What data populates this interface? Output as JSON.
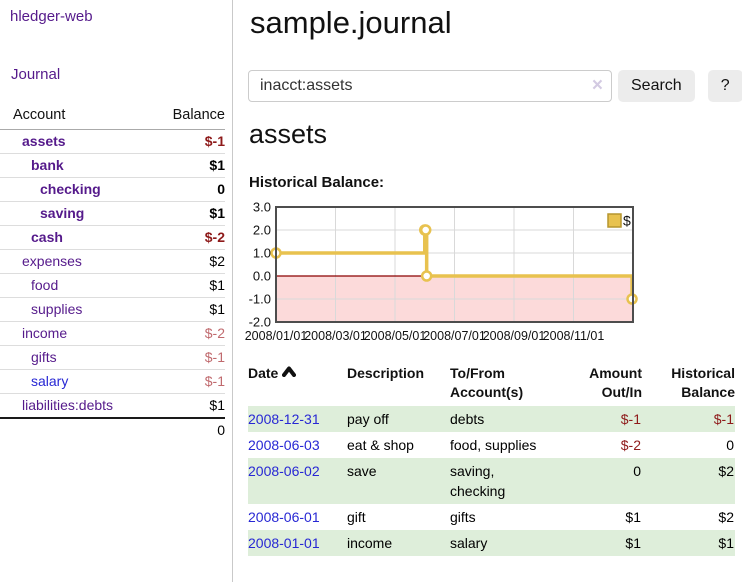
{
  "app": {
    "title": "hledger-web",
    "nav_journal": "Journal"
  },
  "sidebar": {
    "headers": {
      "account": "Account",
      "balance": "Balance"
    },
    "accounts": [
      {
        "name": "assets",
        "level": 0,
        "emph": true,
        "balance": "$-1",
        "neg": "strong"
      },
      {
        "name": "bank",
        "level": 1,
        "emph": true,
        "balance": "$1"
      },
      {
        "name": "checking",
        "level": 2,
        "emph": true,
        "balance": "0"
      },
      {
        "name": "saving",
        "level": 2,
        "emph": true,
        "balance": "$1"
      },
      {
        "name": "cash",
        "level": 1,
        "emph": true,
        "balance": "$-2",
        "neg": "strong"
      },
      {
        "name": "expenses",
        "level": 0,
        "emph": false,
        "balance": "$2"
      },
      {
        "name": "food",
        "level": 1,
        "emph": false,
        "balance": "$1"
      },
      {
        "name": "supplies",
        "level": 1,
        "emph": false,
        "balance": "$1"
      },
      {
        "name": "income",
        "level": 0,
        "emph": false,
        "balance": "$-2",
        "neg": "muted"
      },
      {
        "name": "gifts",
        "level": 1,
        "emph": false,
        "balance": "$-1",
        "neg": "muted"
      },
      {
        "name": "salary",
        "level": 1,
        "emph": false,
        "balance": "$-1",
        "neg": "muted",
        "unvisited": true
      },
      {
        "name": "liabilities:debts",
        "level": 0,
        "emph": false,
        "balance": "$1",
        "last": true
      }
    ],
    "total": "0"
  },
  "main": {
    "title": "sample.journal",
    "search": {
      "value": "inacct:assets",
      "clear_icon": "×",
      "button": "Search",
      "help": "?"
    },
    "account_heading": "assets"
  },
  "chart_data": {
    "type": "line",
    "title": "Historical Balance:",
    "step": true,
    "x_domain": [
      "2008-01-01",
      "2008-12-31"
    ],
    "x_ticks": [
      "2008/01/01",
      "2008/03/01",
      "2008/05/01",
      "2008/07/01",
      "2008/09/01",
      "2008/11/01"
    ],
    "y_ticks": [
      "3.0",
      "2.0",
      "1.0",
      "0.0",
      "-1.0",
      "-2.0"
    ],
    "ylim": [
      -2.0,
      3.0
    ],
    "grid": true,
    "legend": {
      "label": "$",
      "position": "top-right"
    },
    "series": [
      {
        "name": "$",
        "color": "#e8c24f",
        "points": [
          {
            "date": "2008-01-01",
            "value": 1
          },
          {
            "date": "2008-06-01",
            "value": 2
          },
          {
            "date": "2008-06-02",
            "value": 2
          },
          {
            "date": "2008-06-03",
            "value": 0
          },
          {
            "date": "2008-12-31",
            "value": -1
          }
        ]
      }
    ],
    "colors": {
      "negative_region": "#fcdada",
      "zero_line": "#8b0000",
      "border": "#4d4d4d",
      "grid": "#d9d9d9",
      "legend_border": "#b6952f"
    }
  },
  "register": {
    "headers": [
      {
        "label": "Date",
        "sort": "asc"
      },
      {
        "label": "Description"
      },
      {
        "label": "To/From Account(s)"
      },
      {
        "label": "Amount Out/In",
        "align": "right"
      },
      {
        "label": "Historical Balance",
        "align": "right"
      }
    ],
    "rows": [
      {
        "date": "2008-12-31",
        "description": "pay off",
        "accounts": "debts",
        "amount": "$-1",
        "amount_neg": true,
        "balance": "$-1",
        "balance_neg": true,
        "shaded": true
      },
      {
        "date": "2008-06-03",
        "description": "eat & shop",
        "accounts": "food, supplies",
        "amount": "$-2",
        "amount_neg": true,
        "balance": "0",
        "balance_neg": false,
        "shaded": false
      },
      {
        "date": "2008-06-02",
        "description": "save",
        "accounts": "saving, checking",
        "amount": "0",
        "amount_neg": false,
        "balance": "$2",
        "balance_neg": false,
        "shaded": true
      },
      {
        "date": "2008-06-01",
        "description": "gift",
        "accounts": "gifts",
        "amount": "$1",
        "amount_neg": false,
        "balance": "$2",
        "balance_neg": false,
        "shaded": false
      },
      {
        "date": "2008-01-01",
        "description": "income",
        "accounts": "salary",
        "amount": "$1",
        "amount_neg": false,
        "balance": "$1",
        "balance_neg": false,
        "shaded": true
      }
    ]
  },
  "colors": {
    "accent_purple": "#551a8b",
    "link_blue": "#2727d4",
    "negative_strong": "#8e1a1a",
    "negative_muted": "#c06a6e",
    "row_stripe_green": "#deeeda",
    "button_gray": "#ececec"
  }
}
